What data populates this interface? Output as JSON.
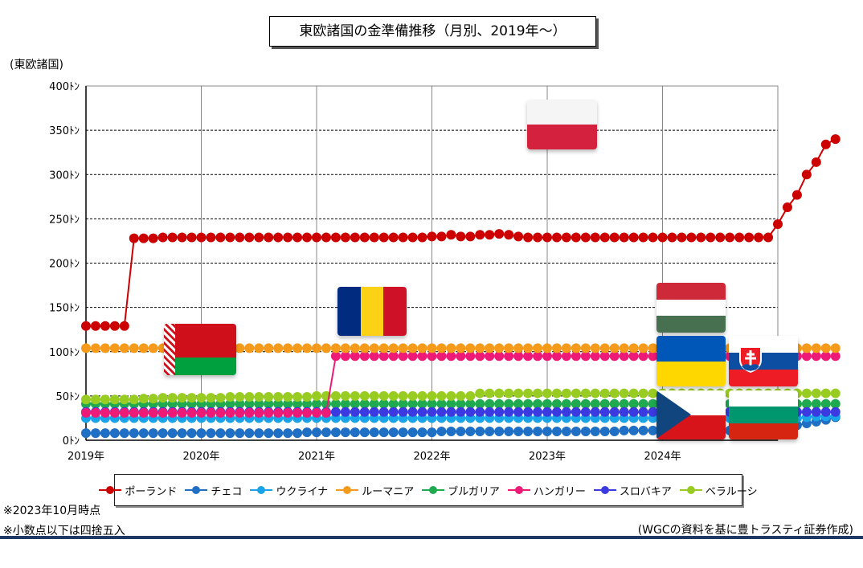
{
  "title": "東欧諸国の金準備推移（月別、2019年～）",
  "unit_label": "(東欧諸国)",
  "notes": [
    "※2023年10月時点",
    "※小数点以下は四捨五入"
  ],
  "source": "(WGCの資料を基に豊トラスティ証券作成)",
  "colors": {
    "poland": "#cc0000",
    "czech": "#1f6fc4",
    "ukraine": "#1aa3e8",
    "romania": "#f59a1a",
    "bulgaria": "#1faa50",
    "hungary": "#ee1a78",
    "slovakia": "#3a3ae0",
    "belarus": "#99cc22"
  },
  "flags": {
    "poland": "poland-flag",
    "romania": "romania-flag",
    "belarus": "belarus-flag",
    "hungary": "hungary-flag",
    "ukraine": "ukraine-flag",
    "slovakia": "slovakia-flag",
    "czech": "czech-flag",
    "bulgaria": "bulgaria-flag"
  },
  "chart_data": {
    "type": "line",
    "ylim": [
      0,
      400
    ],
    "yticks": [
      "0ﾄﾝ",
      "50ﾄﾝ",
      "100ﾄﾝ",
      "150ﾄﾝ",
      "200ﾄﾝ",
      "250ﾄﾝ",
      "300ﾄﾝ",
      "350ﾄﾝ",
      "400ﾄﾝ"
    ],
    "xticks": [
      "2019年",
      "2020年",
      "2021年",
      "2022年",
      "2023年",
      "2024年"
    ],
    "x_start": "2019-01",
    "x_end_axis": "2024-12",
    "grid": true,
    "legend_position": "bottom",
    "series": [
      {
        "key": "poland",
        "name": "ポーランド",
        "values": [
          129,
          129,
          129,
          129,
          129,
          228,
          228,
          228,
          229,
          229,
          229,
          229,
          229,
          229,
          229,
          229,
          229,
          229,
          229,
          229,
          229,
          229,
          229,
          229,
          229,
          229,
          229,
          229,
          229,
          229,
          229,
          229,
          229,
          229,
          229,
          229,
          230,
          230,
          232,
          230,
          230,
          232,
          232,
          233,
          232,
          230,
          229,
          229,
          229,
          229,
          229,
          229,
          229,
          229,
          229,
          229,
          229,
          229,
          229,
          229,
          229,
          229,
          229,
          229,
          229,
          229,
          229,
          229,
          229,
          229,
          229,
          229,
          244,
          263,
          277,
          300,
          314,
          334,
          340
        ]
      },
      {
        "key": "czech",
        "name": "チェコ",
        "values": [
          8,
          8,
          8,
          8,
          8,
          8,
          8,
          8,
          8,
          8,
          8,
          8,
          8,
          8,
          8,
          8,
          8,
          8,
          8,
          8,
          8,
          8,
          8,
          9,
          9,
          9,
          9,
          9,
          9,
          9,
          9,
          9,
          9,
          9,
          9,
          9,
          9,
          10,
          10,
          10,
          10,
          10,
          10,
          10,
          10,
          10,
          10,
          10,
          10,
          10,
          10,
          10,
          10,
          10,
          10,
          10,
          11,
          11,
          11,
          11,
          11,
          11,
          11,
          11,
          11,
          11,
          11,
          11,
          11,
          11,
          11,
          12,
          13,
          15,
          17,
          19,
          21,
          23,
          26
        ]
      },
      {
        "key": "ukraine",
        "name": "ウクライナ",
        "values": [
          25,
          25,
          25,
          25,
          25,
          25,
          25,
          25,
          25,
          25,
          25,
          25,
          25,
          25,
          25,
          25,
          25,
          25,
          25,
          25,
          25,
          25,
          25,
          25,
          25,
          25,
          25,
          25,
          25,
          25,
          25,
          25,
          25,
          25,
          25,
          25,
          25,
          25,
          25,
          25,
          25,
          25,
          25,
          25,
          25,
          25,
          25,
          25,
          25,
          25,
          25,
          25,
          25,
          25,
          25,
          25,
          25,
          25,
          25,
          25,
          25,
          25,
          25,
          25,
          25,
          25,
          25,
          25,
          25,
          25,
          25,
          25,
          25,
          25,
          25,
          26,
          27,
          27,
          27
        ]
      },
      {
        "key": "romania",
        "name": "ルーマニア",
        "values": [
          104,
          104,
          104,
          104,
          104,
          104,
          104,
          104,
          104,
          104,
          104,
          104,
          104,
          104,
          104,
          104,
          104,
          104,
          104,
          104,
          104,
          104,
          104,
          104,
          104,
          104,
          104,
          104,
          104,
          104,
          104,
          104,
          104,
          104,
          104,
          104,
          104,
          104,
          104,
          104,
          104,
          104,
          104,
          104,
          104,
          104,
          104,
          104,
          104,
          104,
          104,
          104,
          104,
          104,
          104,
          104,
          104,
          104,
          104,
          104,
          104,
          104,
          104,
          104,
          104,
          104,
          104,
          104,
          104,
          104,
          104,
          104,
          104,
          104,
          104,
          104,
          104,
          104,
          104
        ]
      },
      {
        "key": "bulgaria",
        "name": "ブルガリア",
        "values": [
          41,
          41,
          41,
          41,
          41,
          41,
          41,
          41,
          41,
          41,
          41,
          41,
          41,
          41,
          41,
          41,
          41,
          41,
          41,
          41,
          41,
          41,
          41,
          41,
          41,
          41,
          41,
          41,
          41,
          41,
          41,
          41,
          41,
          41,
          41,
          41,
          41,
          41,
          41,
          41,
          41,
          41,
          41,
          41,
          41,
          41,
          41,
          41,
          41,
          41,
          41,
          41,
          41,
          41,
          41,
          41,
          41,
          41,
          41,
          41,
          41,
          41,
          41,
          41,
          41,
          41,
          41,
          41,
          41,
          41,
          41,
          41,
          41,
          41,
          41,
          41,
          41,
          41,
          41
        ]
      },
      {
        "key": "hungary",
        "name": "ハンガリー",
        "values": [
          31,
          31,
          31,
          31,
          31,
          31,
          31,
          31,
          31,
          31,
          31,
          31,
          31,
          31,
          31,
          31,
          31,
          31,
          31,
          31,
          31,
          31,
          31,
          31,
          31,
          31,
          95,
          95,
          95,
          95,
          95,
          95,
          95,
          95,
          95,
          95,
          95,
          95,
          95,
          95,
          95,
          95,
          95,
          95,
          95,
          95,
          95,
          95,
          95,
          95,
          95,
          95,
          95,
          95,
          95,
          95,
          95,
          95,
          95,
          95,
          95,
          95,
          95,
          95,
          95,
          95,
          95,
          95,
          95,
          95,
          95,
          95,
          95,
          95,
          95,
          95,
          95,
          95,
          95
        ]
      },
      {
        "key": "slovakia",
        "name": "スロバキア",
        "values": [
          32,
          32,
          32,
          32,
          32,
          32,
          32,
          32,
          32,
          32,
          32,
          32,
          32,
          32,
          32,
          32,
          32,
          32,
          32,
          32,
          32,
          32,
          32,
          32,
          32,
          32,
          32,
          32,
          32,
          32,
          32,
          32,
          32,
          32,
          32,
          32,
          32,
          32,
          32,
          32,
          32,
          32,
          32,
          32,
          32,
          32,
          32,
          32,
          32,
          32,
          32,
          32,
          32,
          32,
          32,
          32,
          32,
          32,
          32,
          32,
          32,
          32,
          32,
          32,
          32,
          32,
          32,
          32,
          32,
          32,
          32,
          32,
          32,
          32,
          32,
          32,
          32,
          32,
          32
        ]
      },
      {
        "key": "belarus",
        "name": "ベラルーシ",
        "values": [
          46,
          46,
          46,
          46,
          46,
          46,
          47,
          47,
          48,
          48,
          48,
          48,
          48,
          48,
          48,
          49,
          49,
          49,
          49,
          49,
          49,
          49,
          49,
          49,
          50,
          50,
          50,
          50,
          50,
          50,
          50,
          50,
          50,
          50,
          50,
          50,
          50,
          50,
          50,
          50,
          50,
          53,
          53,
          53,
          53,
          53,
          53,
          53,
          53,
          53,
          53,
          53,
          53,
          53,
          53,
          53,
          53,
          53,
          53,
          53,
          53,
          53,
          53,
          53,
          53,
          53,
          53,
          53,
          53,
          53,
          53,
          53,
          53,
          53,
          53,
          53,
          53,
          53,
          53
        ]
      }
    ]
  }
}
